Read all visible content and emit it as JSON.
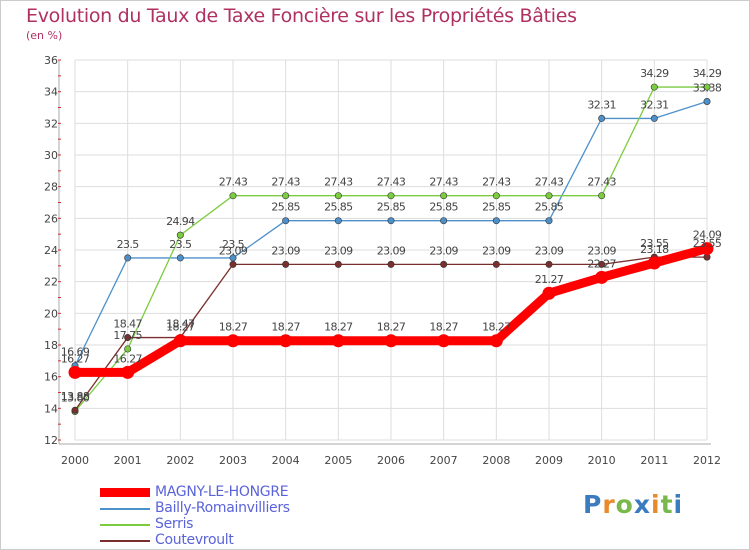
{
  "title": "Evolution du Taux de Taxe Foncière sur les Propriétés Bâties",
  "unit_label": "(en %)",
  "logo": {
    "text": "Proxiti",
    "letters": [
      "P",
      "r",
      "o",
      "x",
      "i",
      "t",
      "i"
    ],
    "colors": [
      "#3b7bbf",
      "#e8892b",
      "#79b84a",
      "#3b7bbf",
      "#e8892b",
      "#79b84a",
      "#3b7bbf"
    ]
  },
  "colors": {
    "frame": "#cccccc",
    "grid": "#dddddd",
    "title": "#b03060",
    "legend_text": "#5a63d9"
  },
  "chart_data": {
    "type": "line",
    "title": "Evolution du Taux de Taxe Foncière sur les Propriétés Bâties",
    "ylabel": "(en %)",
    "xlabel": "",
    "ylim": [
      12,
      36
    ],
    "yticks": [
      12,
      14,
      16,
      18,
      20,
      22,
      24,
      26,
      28,
      30,
      32,
      34,
      36
    ],
    "grid": true,
    "x": [
      "2000",
      "2001",
      "2002",
      "2003",
      "2004",
      "2005",
      "2006",
      "2007",
      "2008",
      "2009",
      "2010",
      "2011",
      "2012"
    ],
    "series": [
      {
        "name": "MAGNY-LE-HONGRE",
        "color": "#ff0000",
        "values": [
          16.27,
          16.27,
          18.27,
          18.27,
          18.27,
          18.27,
          18.27,
          18.27,
          18.27,
          21.27,
          22.27,
          23.18,
          24.09
        ],
        "labels": [
          "16.27",
          "16.27",
          "18.27",
          "18.27",
          "18.27",
          "18.27",
          "18.27",
          "18.27",
          "18.27",
          "21.27",
          "22.27",
          "23.18",
          "24.09"
        ]
      },
      {
        "name": "Bailly-Romainvilliers",
        "color": "#4d90c9",
        "values": [
          16.69,
          23.5,
          23.5,
          23.5,
          25.85,
          25.85,
          25.85,
          25.85,
          25.85,
          25.85,
          32.31,
          32.31,
          33.38
        ],
        "labels": [
          "16.69",
          "23.5",
          "23.5",
          "23.5",
          "25.85",
          "25.85",
          "25.85",
          "25.85",
          "25.85",
          "25.85",
          "32.31",
          "32.31",
          "33.38"
        ]
      },
      {
        "name": "Serris",
        "color": "#7ccc40",
        "values": [
          13.8,
          17.75,
          24.94,
          27.43,
          27.43,
          27.43,
          27.43,
          27.43,
          27.43,
          27.43,
          27.43,
          34.29,
          34.29
        ],
        "labels": [
          "13.80",
          "17.75",
          "24.94",
          "27.43",
          "27.43",
          "27.43",
          "27.43",
          "27.43",
          "27.43",
          "27.43",
          "27.43",
          "34.29",
          "34.29"
        ]
      },
      {
        "name": "Coutevroult",
        "color": "#7a2f2f",
        "values": [
          13.88,
          18.47,
          18.47,
          23.09,
          23.09,
          23.09,
          23.09,
          23.09,
          23.09,
          23.09,
          23.09,
          23.55,
          23.55
        ],
        "labels": [
          "13.88",
          "18.47",
          "18.47",
          "23.09",
          "23.09",
          "23.09",
          "23.09",
          "23.09",
          "23.09",
          "23.09",
          "23.09",
          "23.55",
          "23.55"
        ]
      }
    ]
  }
}
